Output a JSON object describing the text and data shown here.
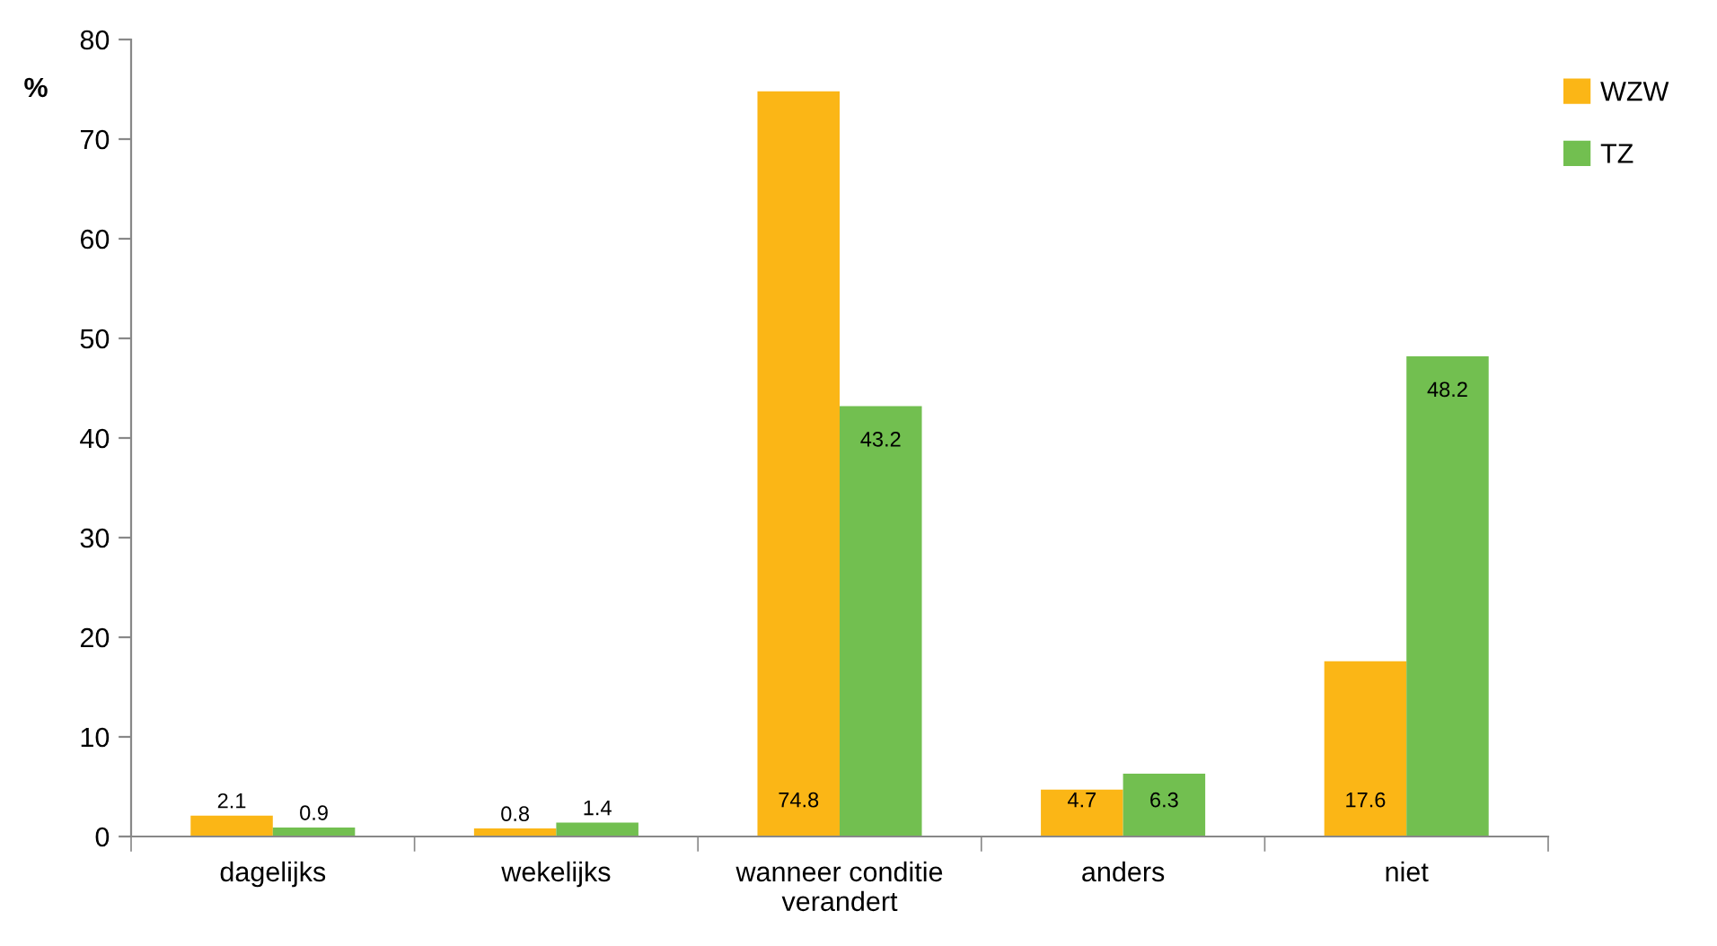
{
  "chart_data": {
    "type": "bar",
    "ylabel": "%",
    "categories": [
      "dagelijks",
      "wekelijks",
      "wanneer conditie\nverandert",
      "anders",
      "niet"
    ],
    "series": [
      {
        "name": "WZW",
        "color": "#fbb616",
        "values": [
          2.1,
          0.8,
          74.8,
          4.7,
          17.6
        ]
      },
      {
        "name": "TZ",
        "color": "#72bf50",
        "values": [
          0.9,
          1.4,
          43.2,
          6.3,
          48.2
        ]
      }
    ],
    "ylim": [
      0,
      80
    ],
    "yticks": [
      0,
      10,
      20,
      30,
      40,
      50,
      60,
      70,
      80
    ],
    "data_labels": true,
    "grid": false,
    "legend": "right"
  }
}
